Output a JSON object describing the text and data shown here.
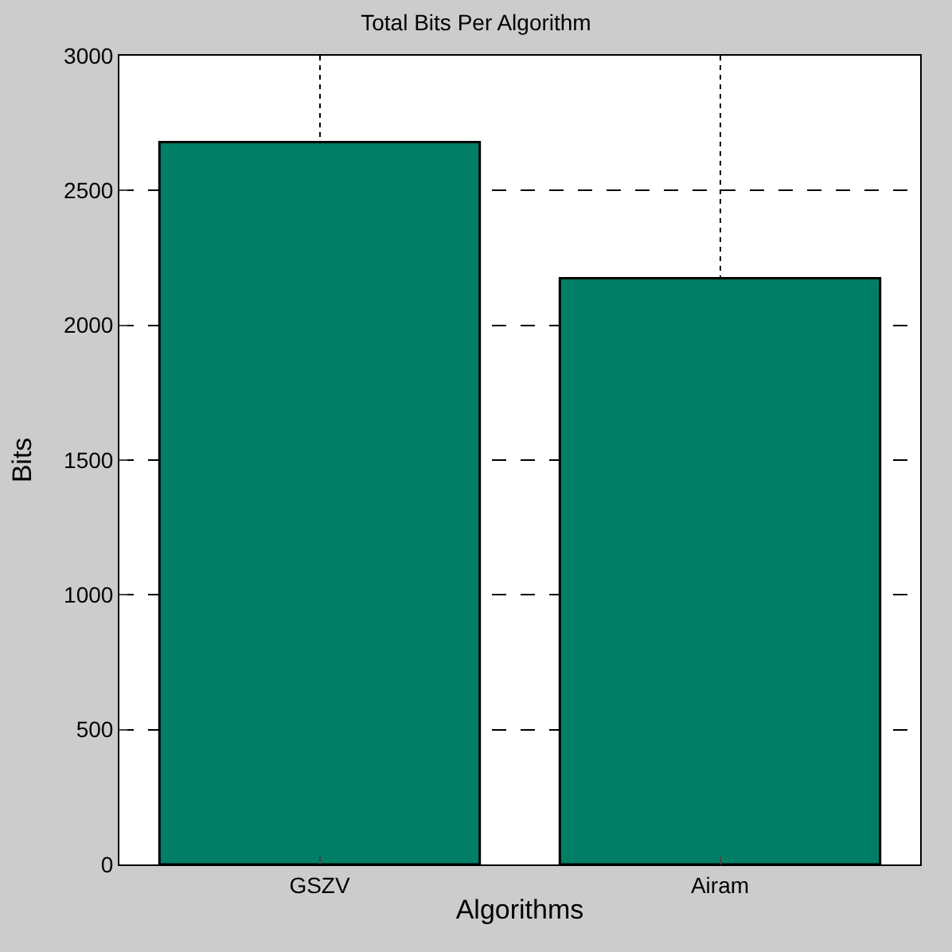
{
  "chart_data": {
    "type": "bar",
    "title": "Total Bits Per Algorithm",
    "xlabel": "Algorithms",
    "ylabel": "Bits",
    "categories": [
      "GSZV",
      "Airam"
    ],
    "values": [
      2680,
      2175
    ],
    "color": "#007f66",
    "ylim": [
      0,
      3000
    ],
    "yticks": [
      0,
      500,
      1000,
      1500,
      2000,
      2500,
      3000
    ],
    "grid": true
  }
}
